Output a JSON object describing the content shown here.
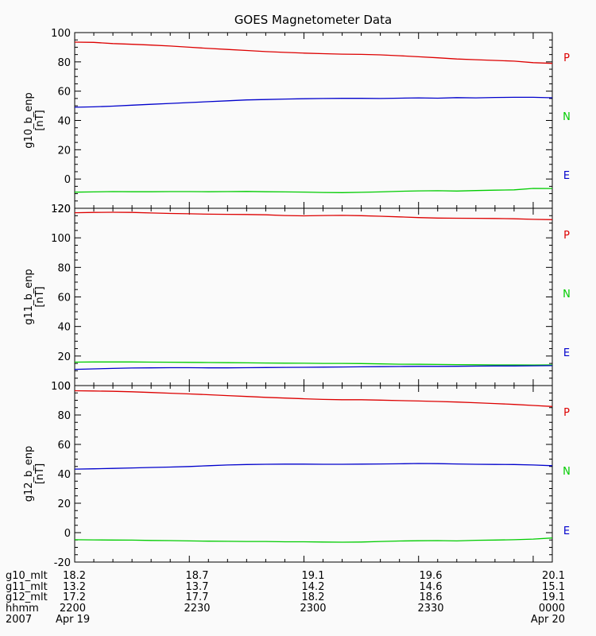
{
  "chart_data": {
    "type": "line",
    "title": "GOES Magnetometer Data",
    "x": [
      0,
      5,
      10,
      15,
      20,
      25,
      30,
      35,
      40,
      45,
      50,
      55,
      60,
      65,
      70,
      75,
      80,
      85,
      90,
      95,
      100,
      105,
      110,
      115,
      120,
      125
    ],
    "x_ticks": [
      0,
      30,
      60,
      90,
      120
    ],
    "panels": [
      {
        "ylabel": "g10_b_enp",
        "unit": "[nT]",
        "ylim": [
          -20,
          100
        ],
        "yticks": [
          -20,
          0,
          20,
          40,
          60,
          80,
          100
        ],
        "series": [
          {
            "name": "P",
            "color": "#dd0000",
            "values": [
              93.5,
              93.3,
              92.5,
              92.0,
              91.5,
              90.8,
              90.0,
              89.2,
              88.5,
              87.8,
              87.0,
              86.5,
              86.0,
              85.6,
              85.3,
              85.1,
              84.8,
              84.2,
              83.5,
              82.8,
              82.0,
              81.5,
              81.0,
              80.5,
              79.5,
              79.0
            ]
          },
          {
            "name": "N",
            "color": "#00cc00",
            "values": [
              -9.0,
              -8.8,
              -8.6,
              -8.7,
              -8.7,
              -8.6,
              -8.6,
              -8.7,
              -8.6,
              -8.5,
              -8.7,
              -8.8,
              -8.9,
              -9.2,
              -9.3,
              -9.1,
              -8.8,
              -8.4,
              -8.1,
              -8.0,
              -8.2,
              -7.9,
              -7.6,
              -7.4,
              -6.4,
              -6.5
            ]
          },
          {
            "name": "E",
            "color": "#0000cc",
            "values": [
              49.0,
              49.3,
              49.8,
              50.4,
              51.0,
              51.6,
              52.2,
              52.8,
              53.4,
              54.0,
              54.3,
              54.6,
              54.8,
              55.0,
              55.1,
              55.1,
              55.0,
              55.2,
              55.4,
              55.2,
              55.6,
              55.4,
              55.7,
              55.8,
              55.8,
              55.5
            ]
          }
        ]
      },
      {
        "ylabel": "g11_b_enp",
        "unit": "[nT]",
        "ylim": [
          0,
          120
        ],
        "yticks": [
          0,
          20,
          40,
          60,
          80,
          100,
          120
        ],
        "series": [
          {
            "name": "P",
            "color": "#dd0000",
            "values": [
              117.0,
              117.2,
              117.3,
              117.2,
              116.8,
              116.5,
              116.3,
              116.0,
              115.9,
              115.8,
              115.6,
              115.1,
              114.9,
              115.1,
              115.2,
              115.0,
              114.6,
              114.2,
              113.7,
              113.4,
              113.3,
              113.2,
              113.1,
              112.9,
              112.5,
              112.3
            ]
          },
          {
            "name": "N",
            "color": "#00cc00",
            "values": [
              15.9,
              16.0,
              16.0,
              16.0,
              15.9,
              15.8,
              15.7,
              15.6,
              15.5,
              15.4,
              15.3,
              15.2,
              15.1,
              15.0,
              15.0,
              14.9,
              14.7,
              14.5,
              14.4,
              14.3,
              14.2,
              14.1,
              14.0,
              14.0,
              13.9,
              14.0
            ]
          },
          {
            "name": "E",
            "color": "#0000cc",
            "values": [
              11.0,
              11.3,
              11.6,
              11.9,
              12.0,
              12.1,
              12.1,
              12.0,
              12.0,
              12.1,
              12.2,
              12.3,
              12.4,
              12.5,
              12.6,
              12.7,
              12.8,
              12.9,
              13.0,
              13.0,
              13.1,
              13.2,
              13.3,
              13.3,
              13.4,
              13.5
            ]
          }
        ]
      },
      {
        "ylabel": "g12_b_enp",
        "unit": "[nT]",
        "ylim": [
          -20,
          100
        ],
        "yticks": [
          -20,
          0,
          20,
          40,
          60,
          80,
          100
        ],
        "series": [
          {
            "name": "P",
            "color": "#dd0000",
            "values": [
              96.5,
              96.3,
              96.1,
              95.8,
              95.3,
              94.8,
              94.3,
              93.8,
              93.2,
              92.6,
              92.0,
              91.5,
              91.0,
              90.6,
              90.4,
              90.4,
              90.1,
              89.8,
              89.5,
              89.2,
              88.8,
              88.3,
              87.8,
              87.2,
              86.5,
              85.8
            ]
          },
          {
            "name": "N",
            "color": "#00cc00",
            "values": [
              -4.8,
              -4.9,
              -5.0,
              -5.1,
              -5.3,
              -5.4,
              -5.6,
              -5.8,
              -5.9,
              -6.0,
              -6.0,
              -6.2,
              -6.2,
              -6.4,
              -6.5,
              -6.4,
              -6.0,
              -5.7,
              -5.5,
              -5.4,
              -5.6,
              -5.2,
              -5.0,
              -4.8,
              -4.4,
              -3.6
            ]
          },
          {
            "name": "E",
            "color": "#0000cc",
            "values": [
              43.2,
              43.4,
              43.7,
              44.0,
              44.3,
              44.6,
              45.0,
              45.5,
              46.0,
              46.3,
              46.5,
              46.6,
              46.6,
              46.5,
              46.5,
              46.6,
              46.7,
              46.8,
              47.0,
              46.9,
              46.7,
              46.5,
              46.4,
              46.3,
              46.0,
              45.5
            ]
          }
        ]
      }
    ],
    "legend": [
      "P",
      "N",
      "E"
    ],
    "legend_colors": [
      "#dd0000",
      "#00cc00",
      "#0000cc"
    ],
    "axis_table": [
      {
        "label": "g10_mlt",
        "values": [
          "18.2",
          "18.7",
          "19.1",
          "19.6",
          "20.1"
        ]
      },
      {
        "label": "g11_mlt",
        "values": [
          "13.2",
          "13.7",
          "14.2",
          "14.6",
          "15.1"
        ]
      },
      {
        "label": "g12_mlt",
        "values": [
          "17.2",
          "17.7",
          "18.2",
          "18.6",
          "19.1"
        ]
      },
      {
        "label": "hhmm",
        "values": [
          "2200",
          "2230",
          "2300",
          "2330",
          "0000"
        ]
      },
      {
        "label": "2007",
        "values": [
          "Apr 19",
          "",
          "",
          "",
          "Apr 20"
        ]
      }
    ],
    "grid": false
  }
}
